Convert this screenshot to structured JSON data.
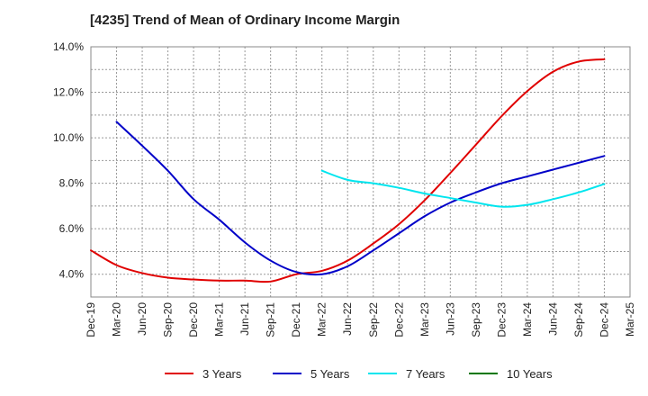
{
  "chart_data": {
    "type": "line",
    "title": "[4235]  Trend of Mean of Ordinary Income Margin",
    "xlabel": "",
    "ylabel": "",
    "ylim": [
      3.0,
      14.0
    ],
    "yticks": [
      "4.0%",
      "6.0%",
      "8.0%",
      "10.0%",
      "12.0%",
      "14.0%"
    ],
    "ytick_values": [
      4.0,
      6.0,
      8.0,
      10.0,
      12.0,
      14.0
    ],
    "categories": [
      "Dec-19",
      "Mar-20",
      "Jun-20",
      "Sep-20",
      "Dec-20",
      "Mar-21",
      "Jun-21",
      "Sep-21",
      "Dec-21",
      "Mar-22",
      "Jun-22",
      "Sep-22",
      "Dec-22",
      "Mar-23",
      "Jun-23",
      "Sep-23",
      "Dec-23",
      "Mar-24",
      "Jun-24",
      "Sep-24",
      "Dec-24",
      "Mar-25"
    ],
    "grid": true,
    "legend_position": "bottom",
    "series": [
      {
        "name": "3 Years",
        "color": "#e00000",
        "values": [
          5.05,
          4.4,
          4.05,
          3.85,
          3.77,
          3.72,
          3.72,
          3.68,
          4.0,
          4.15,
          4.6,
          5.35,
          6.2,
          7.25,
          8.45,
          9.7,
          10.95,
          12.05,
          12.9,
          13.35,
          13.45,
          null
        ]
      },
      {
        "name": "5 Years",
        "color": "#0000c8",
        "values": [
          null,
          10.7,
          9.65,
          8.55,
          7.3,
          6.4,
          5.4,
          4.6,
          4.1,
          4.0,
          4.35,
          5.05,
          5.8,
          6.55,
          7.15,
          7.6,
          8.0,
          8.3,
          8.6,
          8.9,
          9.2,
          null
        ]
      },
      {
        "name": "7 Years",
        "color": "#00e5ee",
        "values": [
          null,
          null,
          null,
          null,
          null,
          null,
          null,
          null,
          null,
          8.55,
          8.15,
          8.0,
          7.8,
          7.55,
          7.35,
          7.15,
          6.97,
          7.05,
          7.3,
          7.6,
          7.97,
          null
        ]
      },
      {
        "name": "10 Years",
        "color": "#007700",
        "values": [
          null,
          null,
          null,
          null,
          null,
          null,
          null,
          null,
          null,
          null,
          null,
          null,
          null,
          null,
          null,
          null,
          null,
          null,
          null,
          null,
          null,
          null
        ]
      }
    ]
  }
}
